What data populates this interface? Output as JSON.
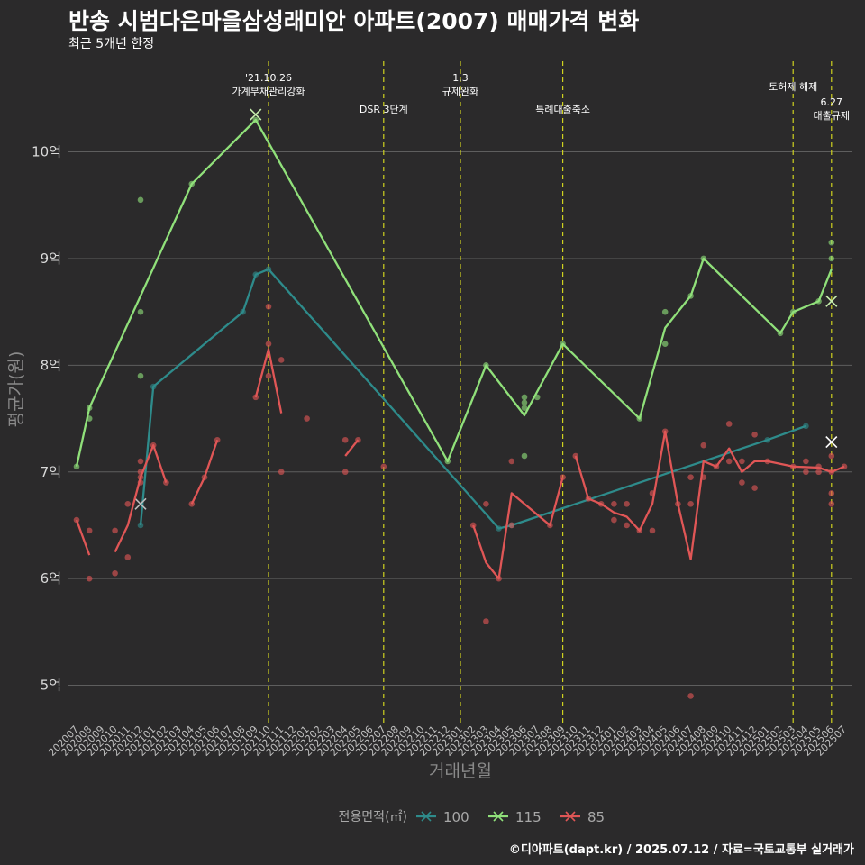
{
  "title": "반송 시범다은마을삼성래미안 아파트(2007) 매매가격 변화",
  "subtitle": "최근 5개년 한정",
  "caption": "©디아파트(dapt.kr) / 2025.07.12 / 자료=국토교통부 실거래가",
  "chart_data": {
    "type": "line",
    "xlabel": "거래년월",
    "ylabel": "평균가(원)",
    "ylim": [
      4.65,
      10.9
    ],
    "yticks": [
      {
        "v": 5,
        "label": "5억"
      },
      {
        "v": 6,
        "label": "6억"
      },
      {
        "v": 7,
        "label": "7억"
      },
      {
        "v": 8,
        "label": "8억"
      },
      {
        "v": 9,
        "label": "9억"
      },
      {
        "v": 10,
        "label": "10억"
      }
    ],
    "x_start": "202007",
    "x_end": "202507",
    "x_ticks": [
      "202007",
      "202008",
      "202009",
      "202010",
      "202011",
      "202012",
      "202101",
      "202102",
      "202103",
      "202104",
      "202105",
      "202106",
      "202107",
      "202108",
      "202109",
      "202110",
      "202111",
      "202112",
      "202201",
      "202202",
      "202203",
      "202204",
      "202205",
      "202206",
      "202207",
      "202208",
      "202209",
      "202210",
      "202211",
      "202212",
      "202301",
      "202302",
      "202303",
      "202304",
      "202305",
      "202306",
      "202307",
      "202308",
      "202309",
      "202310",
      "202311",
      "202312",
      "202401",
      "202402",
      "202403",
      "202404",
      "202405",
      "202406",
      "202407",
      "202408",
      "202409",
      "202410",
      "202411",
      "202412",
      "202501",
      "202502",
      "202503",
      "202504",
      "202505",
      "202506",
      "202507"
    ],
    "events": [
      {
        "x": "202110",
        "label": "'21.10.26\n가계부채관리강화",
        "level": 0
      },
      {
        "x": "202207",
        "label": "DSR 3단계",
        "level": 1
      },
      {
        "x": "202301",
        "label": "1.3\n규제완화",
        "level": 0
      },
      {
        "x": "202309",
        "label": "특례대출축소",
        "level": 1
      },
      {
        "x": "202503",
        "label": "토허제 해제",
        "level": 2
      },
      {
        "x": "202506",
        "label": "6.27\n대출규제",
        "level": 3
      }
    ],
    "legend_title": "전용면적(㎡)",
    "series": [
      {
        "name": "100",
        "color": "#2e8b8b",
        "line": [
          [
            "202012",
            6.5
          ],
          [
            "202101",
            7.8
          ],
          [
            "202108",
            8.5
          ],
          [
            "202109",
            8.85
          ],
          [
            "202110",
            8.9
          ],
          [
            "202304",
            6.47
          ],
          [
            "202305",
            6.5
          ],
          [
            "202501",
            7.3
          ],
          [
            "202504",
            7.43
          ]
        ],
        "points": [
          [
            "202012",
            6.5
          ],
          [
            "202101",
            7.8
          ],
          [
            "202108",
            8.5
          ],
          [
            "202109",
            8.85
          ],
          [
            "202110",
            8.9
          ],
          [
            "202304",
            6.47
          ],
          [
            "202305",
            6.5
          ],
          [
            "202501",
            7.3
          ],
          [
            "202504",
            7.43
          ]
        ],
        "marks": [
          [
            "202012",
            6.7
          ]
        ]
      },
      {
        "name": "115",
        "color": "#90e07a",
        "line": [
          [
            "202007",
            7.05
          ],
          [
            "202008",
            7.6
          ],
          [
            "202104",
            9.7
          ],
          [
            "202109",
            10.3
          ],
          [
            "202212",
            7.1
          ],
          [
            "202303",
            8.0
          ],
          [
            "202306",
            7.53
          ],
          [
            "202309",
            8.2
          ],
          [
            "202403",
            7.5
          ],
          [
            "202405",
            8.35
          ],
          [
            "202407",
            8.65
          ],
          [
            "202408",
            9.0
          ],
          [
            "202502",
            8.3
          ],
          [
            "202503",
            8.5
          ],
          [
            "202505",
            8.6
          ],
          [
            "202506",
            8.9
          ]
        ],
        "points": [
          [
            "202007",
            7.05
          ],
          [
            "202008",
            7.6
          ],
          [
            "202008",
            7.5
          ],
          [
            "202012",
            9.55
          ],
          [
            "202012",
            8.5
          ],
          [
            "202012",
            7.9
          ],
          [
            "202104",
            9.7
          ],
          [
            "202109",
            10.3
          ],
          [
            "202212",
            7.1
          ],
          [
            "202303",
            8.0
          ],
          [
            "202306",
            7.7
          ],
          [
            "202306",
            7.65
          ],
          [
            "202306",
            7.6
          ],
          [
            "202306",
            7.15
          ],
          [
            "202307",
            7.7
          ],
          [
            "202309",
            8.2
          ],
          [
            "202403",
            7.5
          ],
          [
            "202405",
            8.5
          ],
          [
            "202405",
            8.2
          ],
          [
            "202407",
            8.65
          ],
          [
            "202408",
            9.0
          ],
          [
            "202502",
            8.3
          ],
          [
            "202503",
            8.5
          ],
          [
            "202505",
            8.6
          ],
          [
            "202506",
            9.15
          ],
          [
            "202506",
            9.0
          ]
        ],
        "marks": [
          [
            "202109",
            10.35
          ],
          [
            "202506",
            8.6
          ]
        ]
      },
      {
        "name": "85",
        "color": "#e05656",
        "line": [
          [
            [
              "202007",
              6.55
            ],
            [
              "202008",
              6.22
            ]
          ],
          [
            [
              "202010",
              6.25
            ],
            [
              "202011",
              6.5
            ],
            [
              "202012",
              6.95
            ],
            [
              "202101",
              7.25
            ],
            [
              "202102",
              6.9
            ]
          ],
          [
            [
              "202104",
              6.7
            ],
            [
              "202105",
              6.95
            ],
            [
              "202106",
              7.3
            ]
          ],
          [
            [
              "202109",
              7.7
            ],
            [
              "202110",
              8.15
            ],
            [
              "202111",
              7.55
            ]
          ],
          [
            [
              "202204",
              7.15
            ],
            [
              "202205",
              7.3
            ]
          ],
          [
            [
              "202302",
              6.5
            ],
            [
              "202303",
              6.15
            ],
            [
              "202304",
              6.0
            ],
            [
              "202305",
              6.8
            ],
            [
              "202308",
              6.5
            ],
            [
              "202309",
              6.95
            ]
          ],
          [
            [
              "202310",
              7.15
            ],
            [
              "202311",
              6.75
            ],
            [
              "202312",
              6.7
            ],
            [
              "202401",
              6.62
            ],
            [
              "202402",
              6.58
            ],
            [
              "202403",
              6.45
            ],
            [
              "202404",
              6.7
            ],
            [
              "202405",
              7.38
            ],
            [
              "202406",
              6.7
            ],
            [
              "202407",
              6.18
            ],
            [
              "202408",
              7.1
            ],
            [
              "202409",
              7.05
            ],
            [
              "202410",
              7.22
            ],
            [
              "202411",
              7.0
            ],
            [
              "202412",
              7.1
            ],
            [
              "202501",
              7.1
            ],
            [
              "202503",
              7.05
            ],
            [
              "202505",
              7.04
            ],
            [
              "202506",
              7.0
            ],
            [
              "202507",
              7.05
            ]
          ]
        ],
        "points": [
          [
            "202007",
            6.55
          ],
          [
            "202008",
            6.45
          ],
          [
            "202008",
            6.0
          ],
          [
            "202010",
            6.45
          ],
          [
            "202010",
            6.05
          ],
          [
            "202011",
            6.7
          ],
          [
            "202011",
            6.2
          ],
          [
            "202012",
            7.1
          ],
          [
            "202012",
            7.0
          ],
          [
            "202012",
            6.95
          ],
          [
            "202012",
            6.9
          ],
          [
            "202101",
            7.25
          ],
          [
            "202102",
            6.9
          ],
          [
            "202104",
            6.7
          ],
          [
            "202105",
            6.95
          ],
          [
            "202106",
            7.3
          ],
          [
            "202109",
            7.7
          ],
          [
            "202110",
            8.55
          ],
          [
            "202110",
            8.2
          ],
          [
            "202110",
            7.9
          ],
          [
            "202111",
            8.05
          ],
          [
            "202111",
            7.0
          ],
          [
            "202201",
            7.5
          ],
          [
            "202204",
            7.3
          ],
          [
            "202204",
            7.0
          ],
          [
            "202205",
            7.3
          ],
          [
            "202207",
            7.05
          ],
          [
            "202302",
            6.5
          ],
          [
            "202303",
            6.7
          ],
          [
            "202303",
            5.6
          ],
          [
            "202304",
            6.0
          ],
          [
            "202305",
            7.1
          ],
          [
            "202305",
            6.5
          ],
          [
            "202308",
            6.5
          ],
          [
            "202309",
            6.95
          ],
          [
            "202310",
            7.15
          ],
          [
            "202311",
            6.75
          ],
          [
            "202312",
            6.7
          ],
          [
            "202401",
            6.7
          ],
          [
            "202401",
            6.55
          ],
          [
            "202402",
            6.7
          ],
          [
            "202402",
            6.5
          ],
          [
            "202403",
            6.45
          ],
          [
            "202404",
            6.8
          ],
          [
            "202404",
            6.45
          ],
          [
            "202405",
            7.38
          ],
          [
            "202406",
            6.7
          ],
          [
            "202407",
            6.95
          ],
          [
            "202407",
            6.7
          ],
          [
            "202407",
            4.9
          ],
          [
            "202408",
            7.25
          ],
          [
            "202408",
            6.95
          ],
          [
            "202409",
            7.05
          ],
          [
            "202410",
            7.45
          ],
          [
            "202410",
            7.1
          ],
          [
            "202411",
            6.9
          ],
          [
            "202411",
            7.1
          ],
          [
            "202412",
            7.35
          ],
          [
            "202412",
            6.85
          ],
          [
            "202501",
            7.1
          ],
          [
            "202503",
            7.05
          ],
          [
            "202504",
            7.1
          ],
          [
            "202504",
            7.0
          ],
          [
            "202505",
            7.05
          ],
          [
            "202505",
            7.0
          ],
          [
            "202506",
            7.15
          ],
          [
            "202506",
            7.0
          ],
          [
            "202506",
            6.8
          ],
          [
            "202506",
            6.7
          ],
          [
            "202507",
            7.05
          ]
        ],
        "marks": [
          [
            "202506",
            7.28
          ]
        ]
      }
    ]
  }
}
